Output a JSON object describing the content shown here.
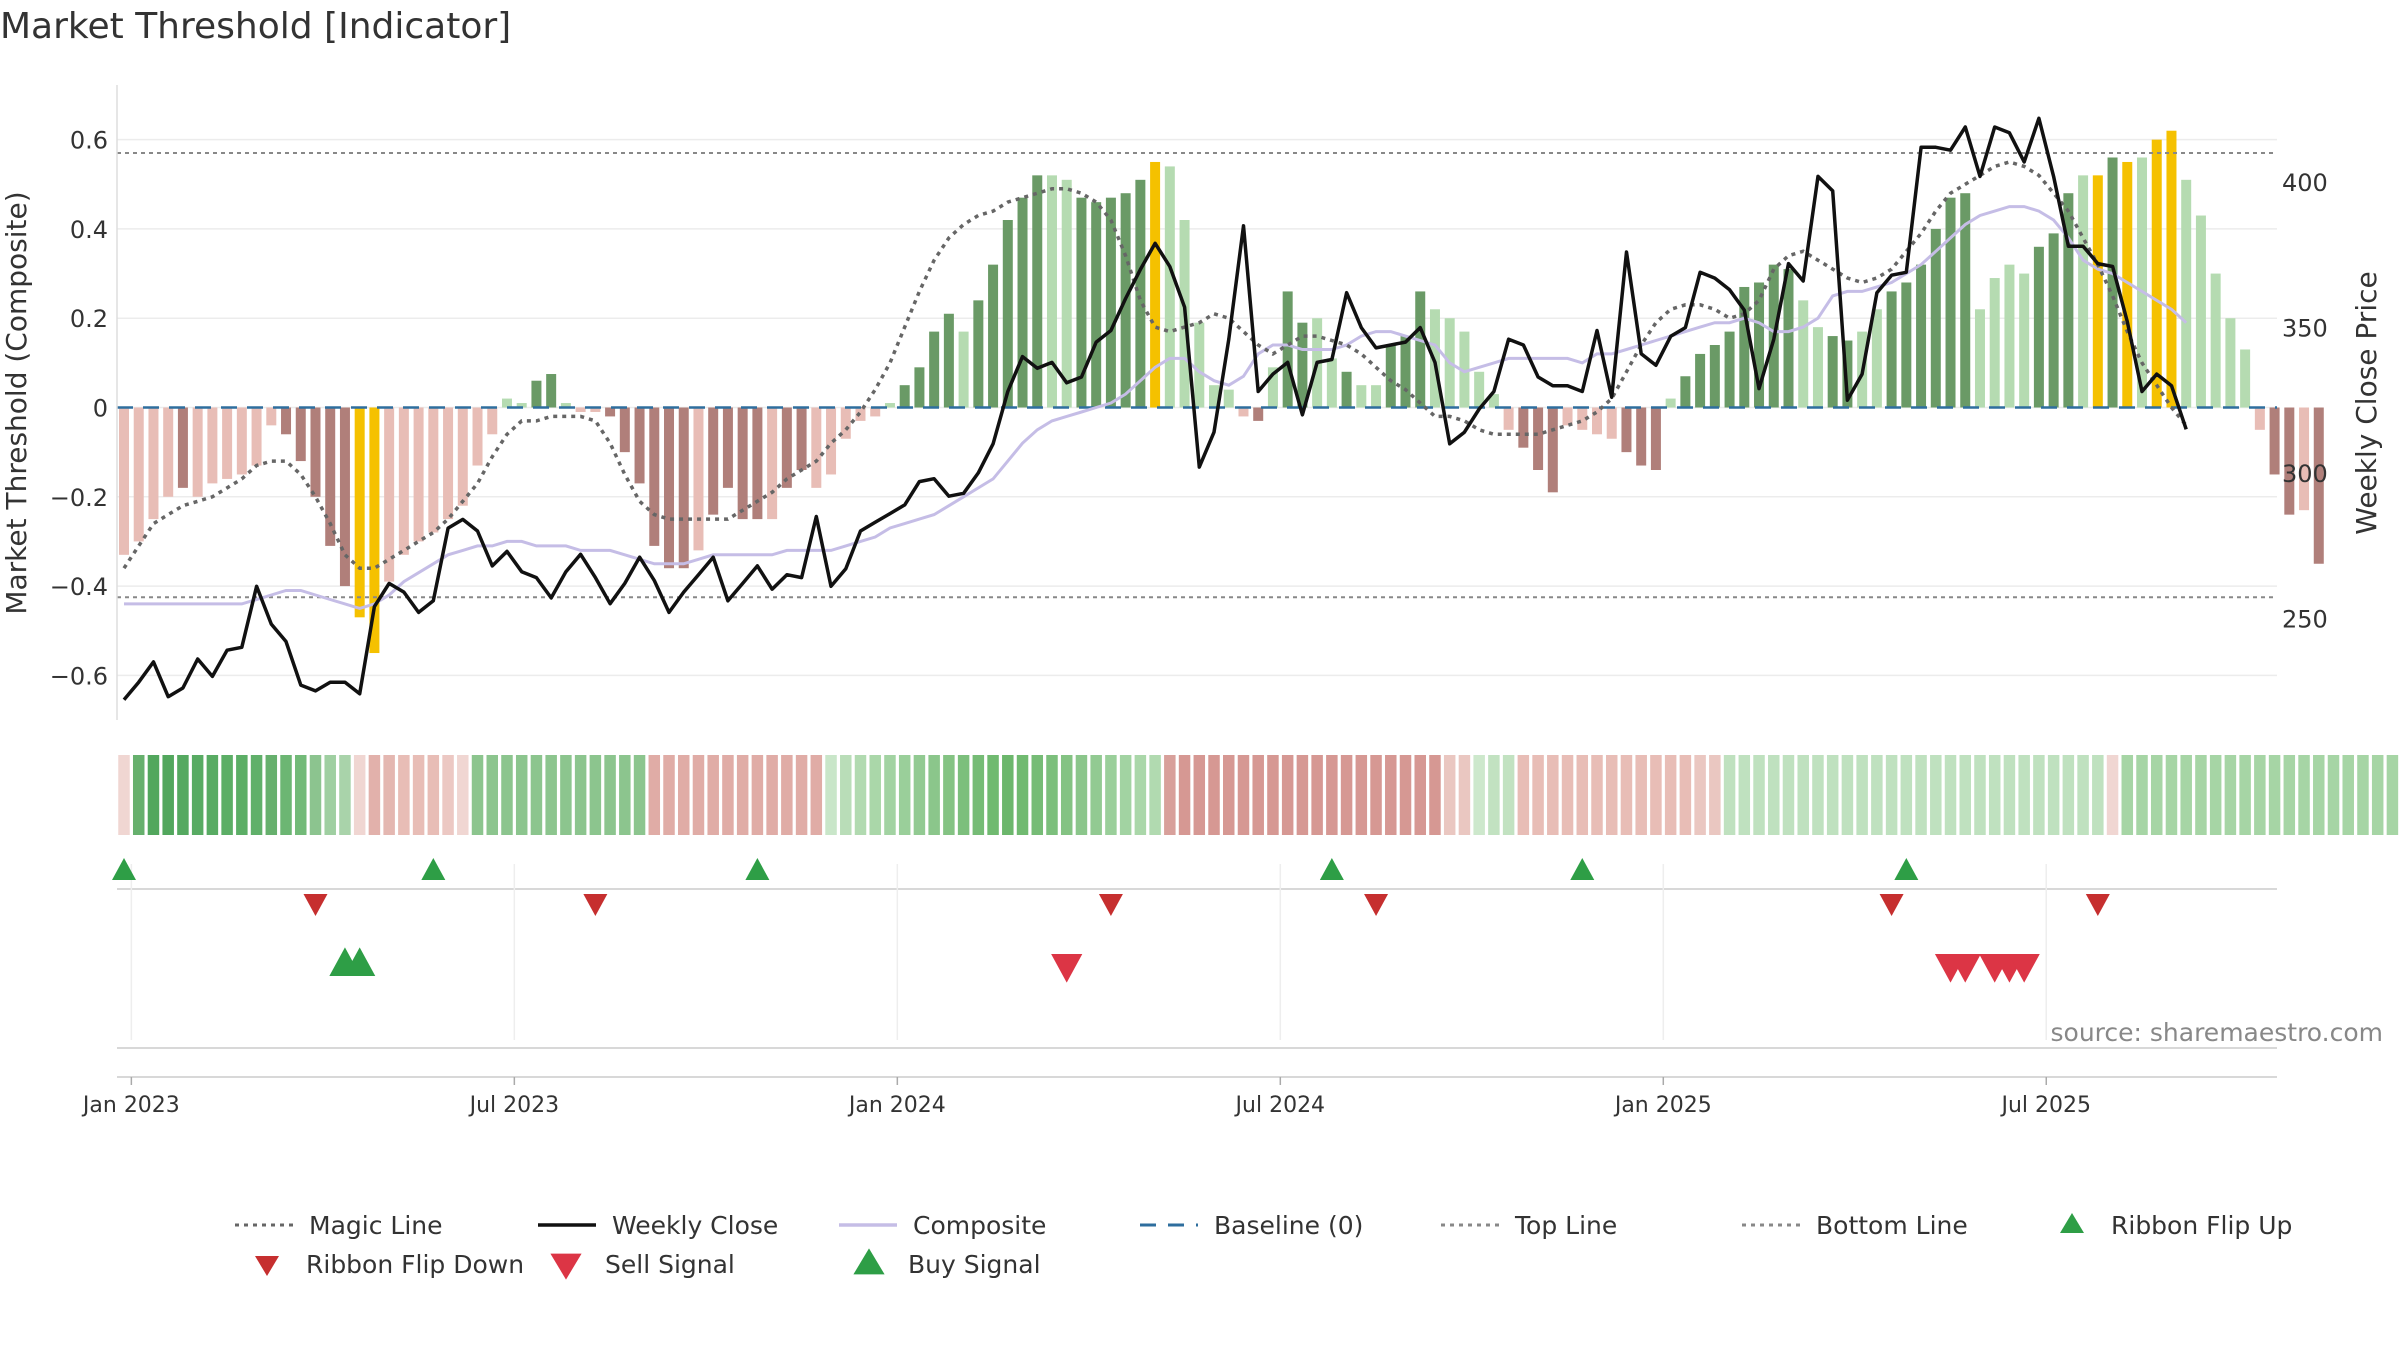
{
  "chart_data": {
    "type": "bar",
    "title": "Market Threshold [Indicator]",
    "ylabel_left": "Market Threshold (Composite)",
    "ylabel_right": "Weekly Close Price",
    "source": "source: sharemaestro.com",
    "ylim_left": [
      -0.7,
      0.7
    ],
    "ylim_right": [
      215,
      430
    ],
    "y_ticks_left": [
      0.6,
      0.4,
      0.2,
      0,
      -0.2,
      -0.4,
      -0.6
    ],
    "y_tick_labels_left": [
      "0.6",
      "0.4",
      "0.2",
      "0",
      "−0.2",
      "−0.4",
      "−0.6"
    ],
    "y_ticks_right": [
      250,
      300,
      350,
      400
    ],
    "y_tick_labels_right": [
      "250",
      "300",
      "350",
      "400"
    ],
    "x_ticks": [
      "Jan 2023",
      "Jul 2023",
      "Jan 2024",
      "Jul 2024",
      "Jan 2025",
      "Jul 2025"
    ],
    "x_tick_weeks": [
      0.5,
      26.5,
      52.5,
      78.5,
      104.5,
      130.5
    ],
    "top_line": 0.57,
    "bottom_line": -0.425,
    "histogram_values": [
      -0.33,
      -0.3,
      -0.25,
      -0.2,
      -0.18,
      -0.2,
      -0.17,
      -0.16,
      -0.15,
      -0.13,
      -0.04,
      -0.06,
      -0.12,
      -0.2,
      -0.31,
      -0.4,
      -0.47,
      -0.55,
      -0.39,
      -0.33,
      -0.3,
      -0.28,
      -0.25,
      -0.22,
      -0.13,
      -0.06,
      0.02,
      0.01,
      0.06,
      0.075,
      0.01,
      -0.01,
      -0.01,
      -0.02,
      -0.1,
      -0.17,
      -0.31,
      -0.36,
      -0.36,
      -0.32,
      -0.24,
      -0.18,
      -0.25,
      -0.25,
      -0.25,
      -0.18,
      -0.14,
      -0.18,
      -0.15,
      -0.07,
      -0.03,
      -0.02,
      0.01,
      0.05,
      0.09,
      0.17,
      0.21,
      0.17,
      0.24,
      0.32,
      0.42,
      0.47,
      0.52,
      0.52,
      0.51,
      0.47,
      0.46,
      0.47,
      0.48,
      0.51,
      0.55,
      0.54,
      0.42,
      0.19,
      0.05,
      0.04,
      -0.02,
      -0.03,
      0.09,
      0.26,
      0.19,
      0.2,
      0.11,
      0.08,
      0.05,
      0.05,
      0.14,
      0.16,
      0.26,
      0.22,
      0.2,
      0.17,
      0.08,
      0.03,
      -0.05,
      -0.09,
      -0.14,
      -0.19,
      -0.04,
      -0.05,
      -0.06,
      -0.07,
      -0.1,
      -0.13,
      -0.14,
      0.02,
      0.07,
      0.12,
      0.14,
      0.17,
      0.27,
      0.28,
      0.32,
      0.31,
      0.24,
      0.18,
      0.16,
      0.15,
      0.17,
      0.22,
      0.26,
      0.28,
      0.32,
      0.4,
      0.47,
      0.48,
      0.22,
      0.29,
      0.32,
      0.3,
      0.36,
      0.39,
      0.48,
      0.52,
      0.52,
      0.56,
      0.55,
      0.56,
      0.6,
      0.62,
      0.51,
      0.43,
      0.3,
      0.2,
      0.13,
      -0.05,
      -0.15,
      -0.24,
      -0.23,
      -0.35
    ],
    "bar_colors": [
      "#e8bdb6",
      "#e8bdb6",
      "#e8bdb6",
      "#e8bdb6",
      "#b07f7a",
      "#e8bdb6",
      "#e8bdb6",
      "#e8bdb6",
      "#e8bdb6",
      "#e8bdb6",
      "#e8bdb6",
      "#b07f7a",
      "#b07f7a",
      "#b07f7a",
      "#b07f7a",
      "#b07f7a",
      "#f5c100",
      "#f5c100",
      "#e8bdb6",
      "#e8bdb6",
      "#e8bdb6",
      "#e8bdb6",
      "#e8bdb6",
      "#e8bdb6",
      "#e8bdb6",
      "#e8bdb6",
      "#b5dbb1",
      "#b5dbb1",
      "#6a9a66",
      "#6a9a66",
      "#b5dbb1",
      "#e8bdb6",
      "#e8bdb6",
      "#b07f7a",
      "#b07f7a",
      "#b07f7a",
      "#b07f7a",
      "#b07f7a",
      "#b07f7a",
      "#e8bdb6",
      "#b07f7a",
      "#b07f7a",
      "#b07f7a",
      "#b07f7a",
      "#e8bdb6",
      "#b07f7a",
      "#b07f7a",
      "#e8bdb6",
      "#e8bdb6",
      "#e8bdb6",
      "#e8bdb6",
      "#e8bdb6",
      "#b5dbb1",
      "#6a9a66",
      "#6a9a66",
      "#6a9a66",
      "#6a9a66",
      "#b5dbb1",
      "#6a9a66",
      "#6a9a66",
      "#6a9a66",
      "#6a9a66",
      "#6a9a66",
      "#b5dbb1",
      "#b5dbb1",
      "#6a9a66",
      "#6a9a66",
      "#6a9a66",
      "#6a9a66",
      "#6a9a66",
      "#f5c100",
      "#b5dbb1",
      "#b5dbb1",
      "#b5dbb1",
      "#b5dbb1",
      "#b5dbb1",
      "#e8bdb6",
      "#b07f7a",
      "#b5dbb1",
      "#6a9a66",
      "#6a9a66",
      "#b5dbb1",
      "#b5dbb1",
      "#6a9a66",
      "#b5dbb1",
      "#b5dbb1",
      "#6a9a66",
      "#6a9a66",
      "#6a9a66",
      "#b5dbb1",
      "#b5dbb1",
      "#b5dbb1",
      "#b5dbb1",
      "#b5dbb1",
      "#e8bdb6",
      "#b07f7a",
      "#b07f7a",
      "#b07f7a",
      "#e8bdb6",
      "#e8bdb6",
      "#e8bdb6",
      "#e8bdb6",
      "#b07f7a",
      "#b07f7a",
      "#b07f7a",
      "#b5dbb1",
      "#6a9a66",
      "#6a9a66",
      "#6a9a66",
      "#6a9a66",
      "#6a9a66",
      "#6a9a66",
      "#6a9a66",
      "#6a9a66",
      "#b5dbb1",
      "#b5dbb1",
      "#6a9a66",
      "#6a9a66",
      "#b5dbb1",
      "#b5dbb1",
      "#6a9a66",
      "#6a9a66",
      "#6a9a66",
      "#6a9a66",
      "#6a9a66",
      "#6a9a66",
      "#b5dbb1",
      "#b5dbb1",
      "#b5dbb1",
      "#b5dbb1",
      "#6a9a66",
      "#6a9a66",
      "#6a9a66",
      "#b5dbb1",
      "#f5c100",
      "#6a9a66",
      "#f5c100",
      "#b5dbb1",
      "#f5c100",
      "#f5c100",
      "#b5dbb1",
      "#b5dbb1",
      "#b5dbb1",
      "#b5dbb1",
      "#b5dbb1",
      "#e8bdb6",
      "#b07f7a",
      "#b07f7a",
      "#e8bdb6",
      "#b07f7a"
    ],
    "weekly_close": [
      222,
      228,
      235,
      223,
      226,
      236,
      230,
      239,
      240,
      261,
      248,
      242,
      227,
      225,
      228,
      228,
      224,
      254,
      262,
      259,
      252,
      256,
      281,
      284,
      280,
      268,
      273,
      266,
      264,
      257,
      266,
      272,
      264,
      255,
      262,
      271,
      263,
      252,
      259,
      265,
      271,
      256,
      262,
      268,
      260,
      265,
      264,
      285,
      261,
      267,
      280,
      283,
      286,
      289,
      297,
      298,
      292,
      293,
      300,
      310,
      328,
      340,
      336,
      338,
      331,
      333,
      345,
      349,
      360,
      370,
      379,
      371,
      357,
      302,
      314,
      346,
      385,
      328,
      334,
      338,
      320,
      338,
      339,
      362,
      350,
      343,
      344,
      345,
      350,
      338,
      310,
      314,
      322,
      328,
      346,
      344,
      333,
      330,
      330,
      328,
      349,
      326,
      376,
      341,
      337,
      347,
      350,
      369,
      367,
      363,
      356,
      329,
      346,
      372,
      366,
      402,
      397,
      325,
      334,
      362,
      368,
      369,
      412,
      412,
      411,
      419,
      402,
      419,
      417,
      407,
      422,
      402,
      378,
      378,
      372,
      371,
      352,
      328,
      334,
      330,
      315
    ],
    "composite_values": [
      -0.44,
      -0.44,
      -0.44,
      -0.44,
      -0.44,
      -0.44,
      -0.44,
      -0.44,
      -0.44,
      -0.43,
      -0.42,
      -0.41,
      -0.41,
      -0.42,
      -0.43,
      -0.44,
      -0.45,
      -0.44,
      -0.42,
      -0.39,
      -0.37,
      -0.35,
      -0.33,
      -0.32,
      -0.31,
      -0.31,
      -0.3,
      -0.3,
      -0.31,
      -0.31,
      -0.31,
      -0.32,
      -0.32,
      -0.32,
      -0.33,
      -0.34,
      -0.35,
      -0.35,
      -0.35,
      -0.34,
      -0.33,
      -0.33,
      -0.33,
      -0.33,
      -0.33,
      -0.32,
      -0.32,
      -0.32,
      -0.32,
      -0.31,
      -0.3,
      -0.29,
      -0.27,
      -0.26,
      -0.25,
      -0.24,
      -0.22,
      -0.2,
      -0.18,
      -0.16,
      -0.12,
      -0.08,
      -0.05,
      -0.03,
      -0.02,
      -0.01,
      0,
      0.01,
      0.03,
      0.06,
      0.09,
      0.11,
      0.11,
      0.08,
      0.06,
      0.05,
      0.07,
      0.12,
      0.14,
      0.14,
      0.13,
      0.13,
      0.13,
      0.14,
      0.16,
      0.17,
      0.17,
      0.16,
      0.15,
      0.14,
      0.1,
      0.08,
      0.09,
      0.1,
      0.11,
      0.11,
      0.11,
      0.11,
      0.11,
      0.1,
      0.12,
      0.12,
      0.13,
      0.14,
      0.15,
      0.16,
      0.17,
      0.18,
      0.19,
      0.19,
      0.2,
      0.19,
      0.17,
      0.17,
      0.18,
      0.2,
      0.25,
      0.26,
      0.26,
      0.27,
      0.28,
      0.3,
      0.32,
      0.35,
      0.38,
      0.41,
      0.43,
      0.44,
      0.45,
      0.45,
      0.44,
      0.42,
      0.38,
      0.33,
      0.31,
      0.3,
      0.28,
      0.26,
      0.24,
      0.22,
      0.19
    ],
    "magic_line_values": [
      -0.36,
      -0.31,
      -0.26,
      -0.24,
      -0.22,
      -0.21,
      -0.2,
      -0.18,
      -0.16,
      -0.13,
      -0.12,
      -0.12,
      -0.15,
      -0.2,
      -0.26,
      -0.33,
      -0.36,
      -0.36,
      -0.34,
      -0.32,
      -0.3,
      -0.28,
      -0.25,
      -0.21,
      -0.17,
      -0.11,
      -0.06,
      -0.03,
      -0.03,
      -0.02,
      -0.02,
      -0.02,
      -0.03,
      -0.08,
      -0.15,
      -0.21,
      -0.24,
      -0.25,
      -0.25,
      -0.25,
      -0.25,
      -0.25,
      -0.23,
      -0.21,
      -0.19,
      -0.16,
      -0.14,
      -0.12,
      -0.08,
      -0.05,
      -0.01,
      0.04,
      0.1,
      0.18,
      0.26,
      0.33,
      0.38,
      0.41,
      0.43,
      0.44,
      0.46,
      0.47,
      0.48,
      0.49,
      0.49,
      0.48,
      0.46,
      0.42,
      0.34,
      0.24,
      0.18,
      0.17,
      0.18,
      0.19,
      0.21,
      0.2,
      0.17,
      0.14,
      0.12,
      0.14,
      0.16,
      0.16,
      0.15,
      0.14,
      0.12,
      0.09,
      0.06,
      0.04,
      0.01,
      -0.02,
      -0.02,
      -0.03,
      -0.05,
      -0.06,
      -0.06,
      -0.06,
      -0.06,
      -0.05,
      -0.04,
      -0.03,
      -0.01,
      0.02,
      0.08,
      0.14,
      0.19,
      0.22,
      0.23,
      0.23,
      0.22,
      0.2,
      0.21,
      0.24,
      0.31,
      0.34,
      0.35,
      0.33,
      0.31,
      0.29,
      0.28,
      0.29,
      0.31,
      0.35,
      0.39,
      0.44,
      0.48,
      0.5,
      0.52,
      0.54,
      0.55,
      0.54,
      0.52,
      0.48,
      0.44,
      0.38,
      0.32,
      0.25,
      0.17,
      0.1,
      0.05,
      0.0,
      -0.04
    ],
    "ribbon_colors": [
      "#f0d6d2",
      "#66b06d",
      "#52a75d",
      "#52a75d",
      "#55a960",
      "#58ab63",
      "#58ab63",
      "#5cae66",
      "#5cae66",
      "#60b06a",
      "#66b06d",
      "#6cb673",
      "#72ba78",
      "#8cc48f",
      "#9fcfa1",
      "#a9d3aa",
      "#f0d6d2",
      "#e2b1ab",
      "#e4b7b1",
      "#e8bdb6",
      "#e8bdb6",
      "#e8bdb6",
      "#ecc8c3",
      "#f0d6d2",
      "#8cc58e",
      "#8cc58e",
      "#8cc58e",
      "#8cc58e",
      "#8cc58e",
      "#8cc58e",
      "#8cc58e",
      "#8cc58e",
      "#8cc58e",
      "#8cc58e",
      "#8cc58e",
      "#8cc58e",
      "#e0aca6",
      "#e0aca6",
      "#e0aca6",
      "#e0aca6",
      "#e0aca6",
      "#e0aca6",
      "#e0aca6",
      "#e0aca6",
      "#e0aca6",
      "#e0aca6",
      "#e0aca6",
      "#e0aca6",
      "#c9e6c9",
      "#b9ddb8",
      "#b1dab0",
      "#aad7a9",
      "#a2d3a2",
      "#9acf9a",
      "#92ca92",
      "#8bc68b",
      "#84c383",
      "#7cbf7c",
      "#76bc76",
      "#70ba70",
      "#6cb76c",
      "#70ba70",
      "#76bc76",
      "#7cbf7c",
      "#84c383",
      "#8bc68b",
      "#92ca92",
      "#9acf9a",
      "#a2d3a2",
      "#aad7a9",
      "#b1dab0",
      "#d8a09b",
      "#d69893",
      "#d69893",
      "#d69893",
      "#d69893",
      "#d69893",
      "#d69893",
      "#d69893",
      "#d69893",
      "#d69893",
      "#d69893",
      "#d69893",
      "#d69893",
      "#d69893",
      "#d69893",
      "#d69893",
      "#d69893",
      "#d69893",
      "#d69893",
      "#eac7c1",
      "#eac7c1",
      "#cde8cc",
      "#c2e2c1",
      "#c2e2c1",
      "#e8bdb6",
      "#e8bdb6",
      "#e8bdb6",
      "#e8bdb6",
      "#e8bdb6",
      "#e8bdb6",
      "#e8bdb6",
      "#e8bdb6",
      "#e8bdb6",
      "#e8bdb6",
      "#e8bdb6",
      "#e8bdb6",
      "#eac7c1",
      "#eac7c1",
      "#bfe1bf",
      "#bfe1bf",
      "#bfe1bf",
      "#bfe1bf",
      "#bfe1bf",
      "#bfe1bf",
      "#bfe1bf",
      "#bfe1bf",
      "#bfe1bf",
      "#bfe1bf",
      "#bfe1bf",
      "#bfe1bf",
      "#bfe1bf",
      "#bfe1bf",
      "#bfe1bf",
      "#bfe1bf",
      "#bfe1bf",
      "#bfe1bf",
      "#bfe1bf",
      "#bfe1bf",
      "#bfe1bf",
      "#bfe1bf",
      "#bfe1bf",
      "#bfe1bf",
      "#bfe1bf",
      "#bfe1bf",
      "#f0d6d2",
      "#a6d5a5",
      "#a6d5a5",
      "#a6d5a5",
      "#a6d5a5",
      "#a6d5a5",
      "#a6d5a5",
      "#a6d5a5",
      "#a6d5a5",
      "#a6d5a5",
      "#a6d5a5",
      "#a6d5a5",
      "#a6d5a5",
      "#a6d5a5",
      "#a6d5a5",
      "#a6d5a5",
      "#a6d5a5",
      "#a6d5a5",
      "#a6d5a5",
      "#a6d5a5",
      "#f0d6d2",
      "#ecc7c2",
      "#e4b1ab",
      "#e1a6a0",
      "#dd9c95",
      "#d98f88",
      "#d5837b",
      "#d1766e",
      "#cd6a62",
      "#c95d55"
    ],
    "ribbon_flip_up_weeks": [
      0,
      21,
      43,
      82,
      99,
      121
    ],
    "ribbon_flip_down_weeks": [
      13,
      32,
      67,
      85,
      120,
      134
    ],
    "buy_signal_weeks": [
      15,
      16
    ],
    "sell_signal_weeks": [
      64,
      124,
      125,
      127,
      128,
      129
    ],
    "legend": [
      {
        "label": "Magic Line",
        "style": "dotted-line",
        "color": "#666666"
      },
      {
        "label": "Weekly Close",
        "style": "solid-line",
        "color": "#111111"
      },
      {
        "label": "Composite",
        "style": "solid-line",
        "color": "#c5bde6"
      },
      {
        "label": "Baseline (0)",
        "style": "dashed-line",
        "color": "#2e6e9e"
      },
      {
        "label": "Top Line",
        "style": "dotted-line",
        "color": "#888888"
      },
      {
        "label": "Bottom Line",
        "style": "dotted-line",
        "color": "#888888"
      },
      {
        "label": "Ribbon Flip Up",
        "style": "triangle-up",
        "color": "#2e9e46"
      },
      {
        "label": "Ribbon Flip Down",
        "style": "triangle-down",
        "color": "#c62f2f"
      },
      {
        "label": "Sell Signal",
        "style": "triangle-down",
        "color": "#dc3545"
      },
      {
        "label": "Buy Signal",
        "style": "triangle-up",
        "color": "#2e9e46"
      }
    ],
    "colors": {
      "baseline": "#2e6e9e",
      "grid": "#ececec",
      "flip_up": "#2e9e46",
      "flip_down": "#c62f2f",
      "sell": "#dc3545",
      "buy": "#2e9e46"
    }
  }
}
